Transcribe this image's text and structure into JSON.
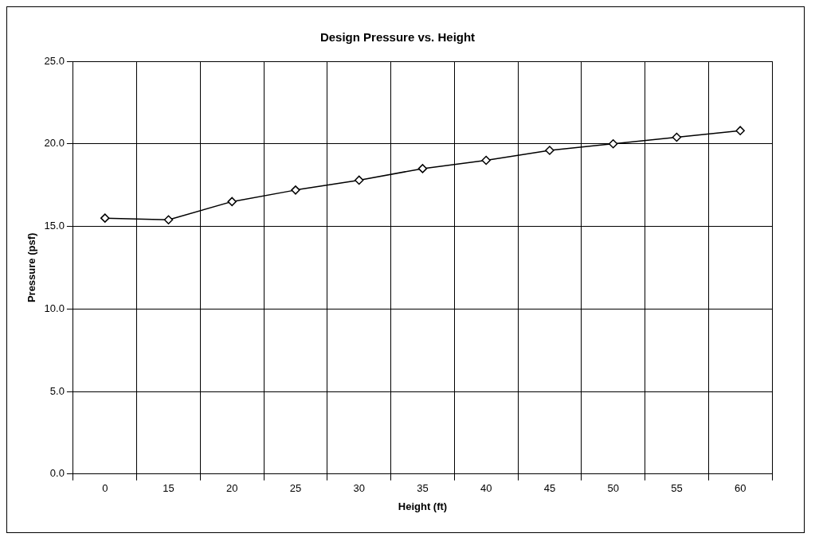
{
  "chart_data": {
    "type": "line",
    "title": "Design Pressure vs. Height",
    "xlabel": "Height (ft)",
    "ylabel": "Pressure (psf)",
    "categories": [
      "0",
      "15",
      "20",
      "25",
      "30",
      "35",
      "40",
      "45",
      "50",
      "55",
      "60"
    ],
    "series": [
      {
        "color": "#000000",
        "values": [
          15.5,
          15.4,
          16.5,
          17.2,
          17.8,
          18.5,
          19.0,
          19.6,
          20.0,
          20.4,
          20.8
        ]
      }
    ],
    "ylim": [
      0,
      25
    ],
    "yticks": [
      {
        "value": 0,
        "label": "0.0"
      },
      {
        "value": 5,
        "label": "5.0"
      },
      {
        "value": 10,
        "label": "10.0"
      },
      {
        "value": 15,
        "label": "15.0"
      },
      {
        "value": 20,
        "label": "20.0"
      },
      {
        "value": 25,
        "label": "25.0"
      }
    ],
    "grid": true,
    "marker": "diamond",
    "line_style": "solid",
    "legend": false
  }
}
